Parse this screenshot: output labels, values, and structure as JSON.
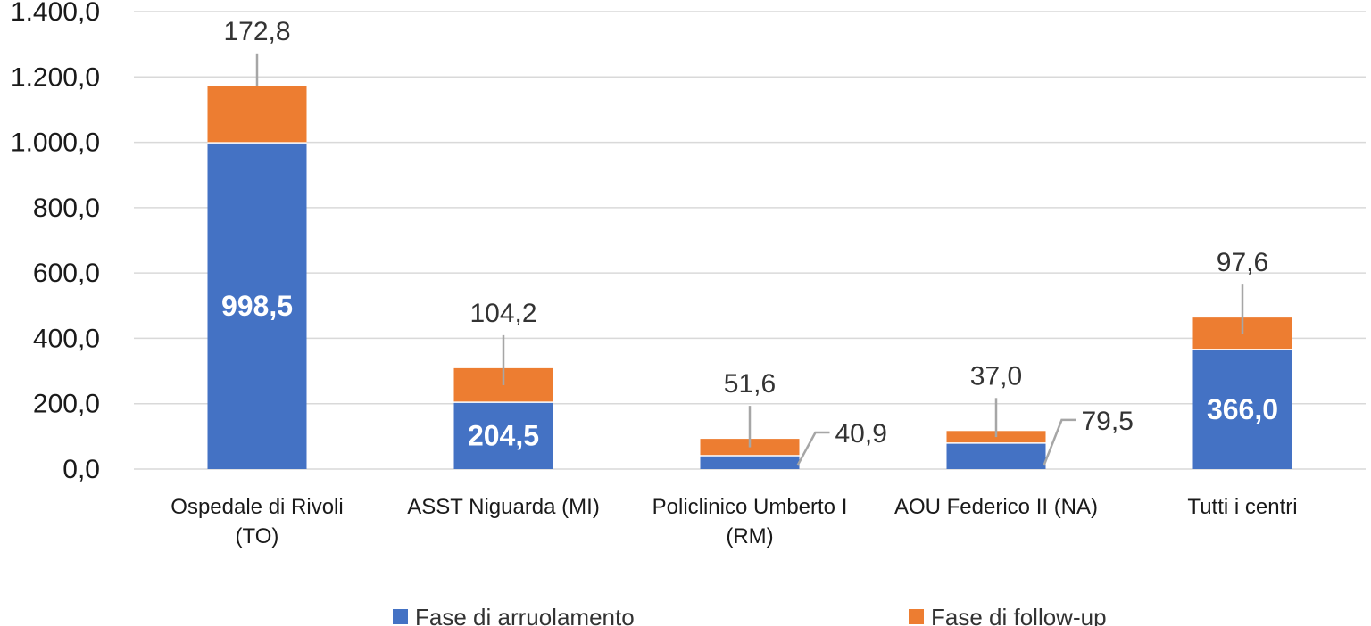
{
  "chart_data": {
    "type": "bar",
    "stacked": true,
    "categories": [
      [
        "Ospedale di Rivoli",
        "(TO)"
      ],
      [
        "ASST Niguarda (MI)"
      ],
      [
        "Policlinico Umberto I",
        "(RM)"
      ],
      [
        "AOU Federico II (NA)"
      ],
      [
        "Tutti i centri"
      ]
    ],
    "series": [
      {
        "name": "Fase di arruolamento",
        "color": "#4472C4",
        "values": [
          998.5,
          204.5,
          40.9,
          79.5,
          366.0
        ],
        "value_labels": [
          "998,5",
          "204,5",
          "40,9",
          "79,5",
          "366,0"
        ]
      },
      {
        "name": "Fase di follow-up",
        "color": "#ED7D31",
        "values": [
          172.8,
          104.2,
          51.6,
          37.0,
          97.6
        ],
        "value_labels": [
          "172,8",
          "104,2",
          "51,6",
          "37,0",
          "97,6"
        ]
      }
    ],
    "y_ticks": [
      "0,0",
      "200,0",
      "400,0",
      "600,0",
      "800,0",
      "1.000,0",
      "1.200,0",
      "1.400,0"
    ],
    "ylim": [
      0,
      1400
    ],
    "grid": true,
    "legend_position": "bottom",
    "title": "",
    "xlabel": "",
    "ylabel": ""
  }
}
